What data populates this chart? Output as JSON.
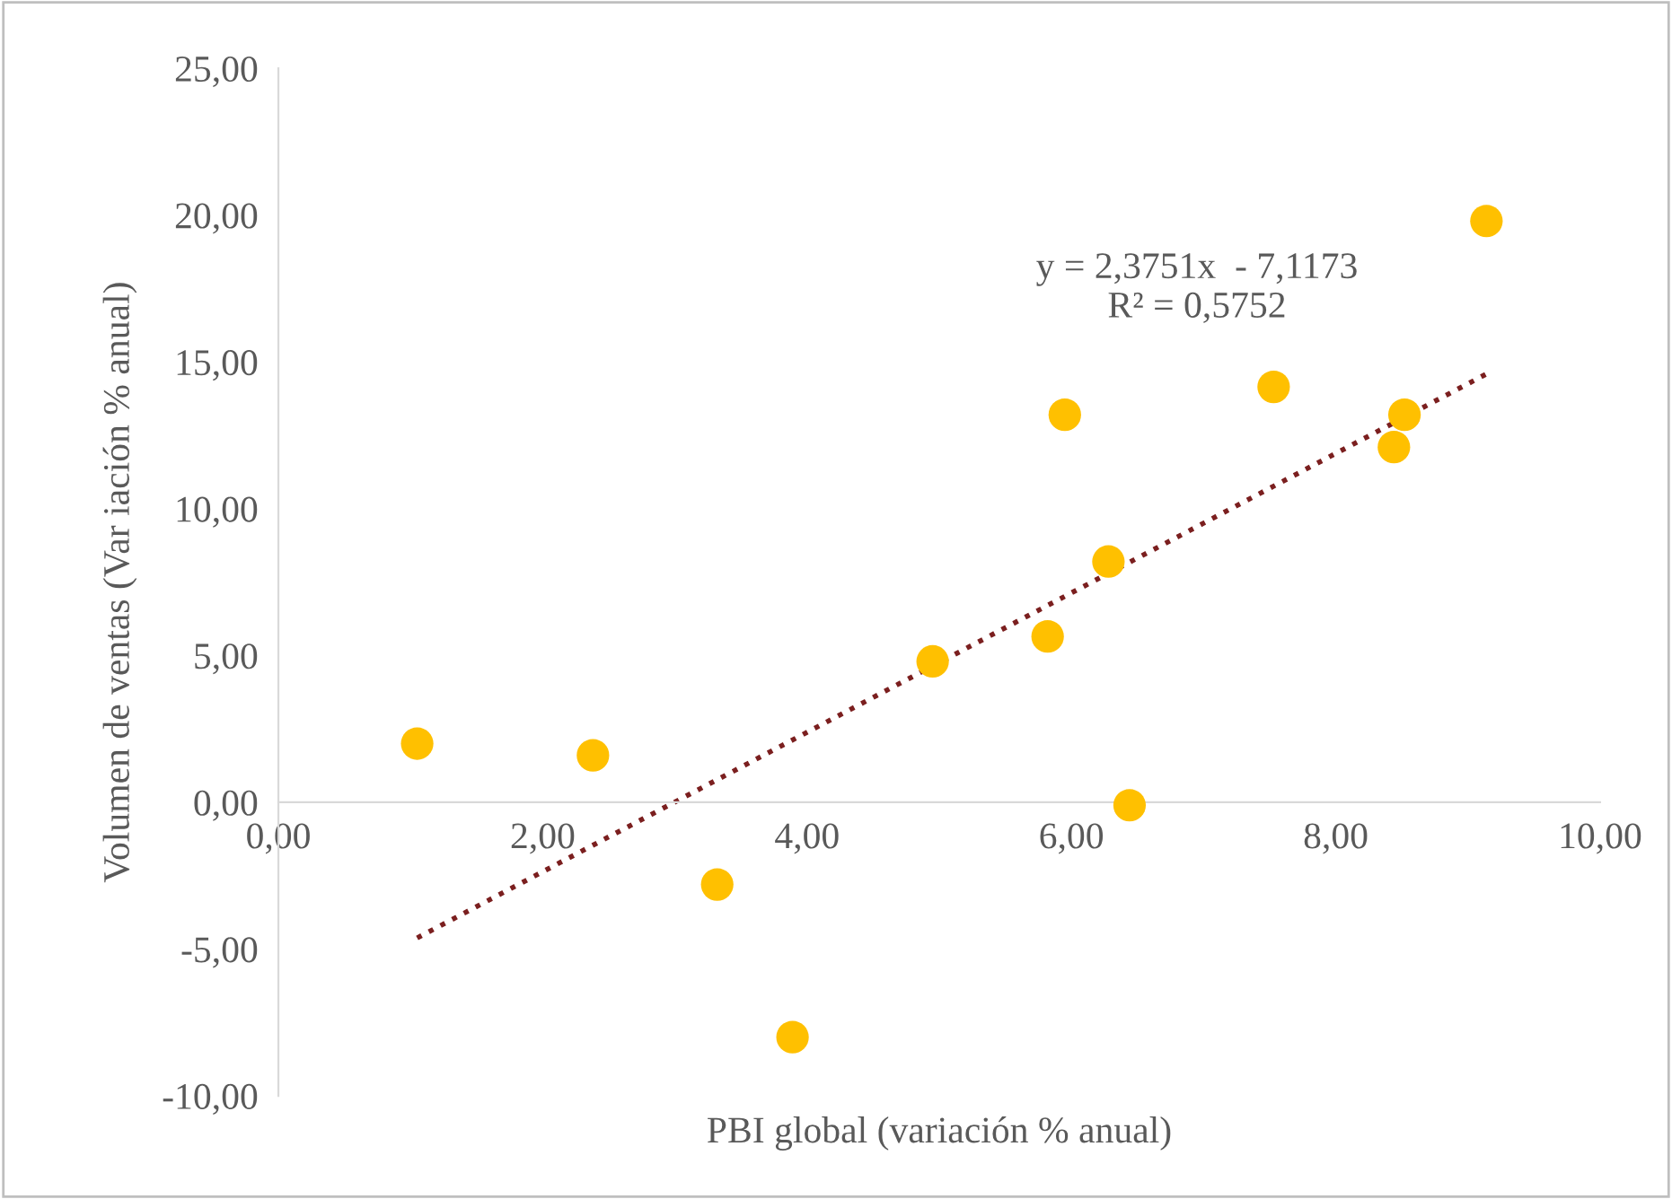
{
  "chart_data": {
    "type": "scatter",
    "xlabel": "PBI global (variación % anual)",
    "ylabel": "Volumen de ventas (Var iación % anual)",
    "series": [
      {
        "marker": "circle",
        "color": "#ffc000",
        "x": [
          1.05,
          2.38,
          3.32,
          3.89,
          4.95,
          5.82,
          5.95,
          6.28,
          6.44,
          7.53,
          8.44,
          8.52,
          9.14
        ],
        "values": [
          2.0,
          1.6,
          -2.8,
          -8.0,
          4.8,
          5.65,
          13.2,
          8.2,
          -0.1,
          14.15,
          12.1,
          13.2,
          19.8
        ]
      },
      {
        "type": "line",
        "color": "#7b1f1f",
        "line_style": "dotted",
        "x": [
          1.05,
          9.14
        ],
        "values": [
          -4.62,
          14.59
        ]
      }
    ],
    "annotations": [
      "y = 2,3751x  - 7,1173\nR² = 0,5752"
    ],
    "xlim": [
      0,
      10
    ],
    "ylim": [
      -10,
      25
    ],
    "xticks": [
      {
        "value": 0,
        "label": "0,00"
      },
      {
        "value": 2,
        "label": "2,00"
      },
      {
        "value": 4,
        "label": "4,00"
      },
      {
        "value": 6,
        "label": "6,00"
      },
      {
        "value": 8,
        "label": "8,00"
      },
      {
        "value": 10,
        "label": "10,00"
      }
    ],
    "yticks": [
      {
        "value": -10,
        "label": "-10,00"
      },
      {
        "value": -5,
        "label": "-5,00"
      },
      {
        "value": 0,
        "label": "0,00"
      },
      {
        "value": 5,
        "label": "5,00"
      },
      {
        "value": 10,
        "label": "10,00"
      },
      {
        "value": 15,
        "label": "15,00"
      },
      {
        "value": 20,
        "label": "20,00"
      },
      {
        "value": 25,
        "label": "25,00"
      }
    ],
    "grid": false,
    "legend": false
  }
}
